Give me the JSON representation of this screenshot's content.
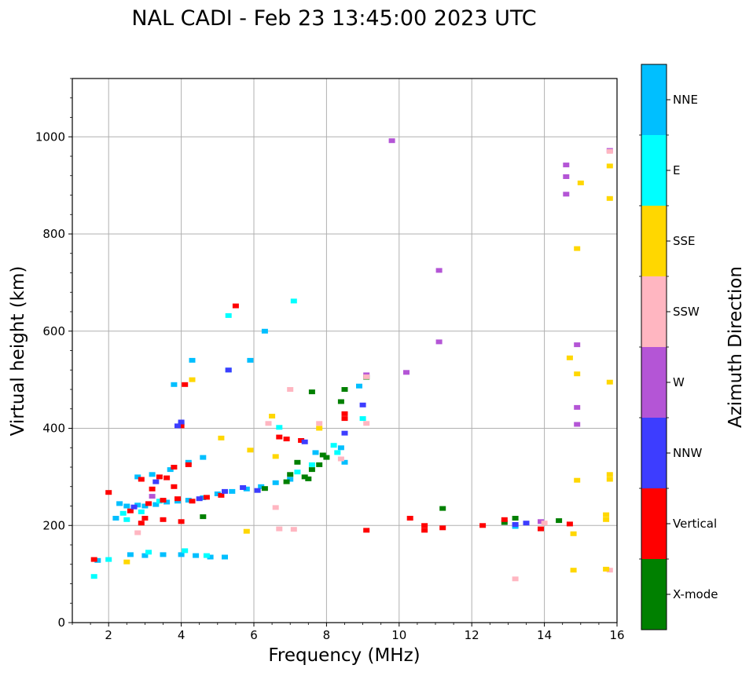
{
  "chart_data": {
    "type": "scatter",
    "title": "NAL CADI - Feb 23 13:45:00 2023 UTC",
    "xlabel": "Frequency (MHz)",
    "ylabel": "Virtual height (km)",
    "xlim": [
      1,
      16
    ],
    "ylim": [
      0,
      1120
    ],
    "xticks": [
      2,
      4,
      6,
      8,
      10,
      12,
      14,
      16
    ],
    "yticks": [
      0,
      200,
      400,
      600,
      800,
      1000
    ],
    "grid": true,
    "colorbar": {
      "label": "Azimuth Direction",
      "categories": [
        {
          "name": "X-mode",
          "color": "#008000"
        },
        {
          "name": "Vertical",
          "color": "#ff0000"
        },
        {
          "name": "NNW",
          "color": "#3d3dff"
        },
        {
          "name": "W",
          "color": "#b455d6"
        },
        {
          "name": "SSW",
          "color": "#ffb6c1"
        },
        {
          "name": "SSE",
          "color": "#ffd700"
        },
        {
          "name": "E",
          "color": "#00ffff"
        },
        {
          "name": "NNE",
          "color": "#00bfff"
        }
      ]
    },
    "series": [
      {
        "name": "NNE",
        "points": [
          [
            2.3,
            245
          ],
          [
            2.5,
            240
          ],
          [
            2.8,
            242
          ],
          [
            3.0,
            240
          ],
          [
            3.3,
            243
          ],
          [
            3.6,
            248
          ],
          [
            3.9,
            250
          ],
          [
            4.2,
            252
          ],
          [
            4.6,
            257
          ],
          [
            5.0,
            265
          ],
          [
            5.4,
            270
          ],
          [
            5.8,
            275
          ],
          [
            6.2,
            280
          ],
          [
            6.6,
            288
          ],
          [
            7.0,
            295
          ],
          [
            2.6,
            140
          ],
          [
            3.0,
            138
          ],
          [
            3.5,
            140
          ],
          [
            4.0,
            140
          ],
          [
            4.4,
            138
          ],
          [
            4.8,
            135
          ],
          [
            5.2,
            135
          ],
          [
            2.8,
            300
          ],
          [
            3.2,
            305
          ],
          [
            3.7,
            315
          ],
          [
            4.2,
            330
          ],
          [
            4.6,
            340
          ],
          [
            5.3,
            520
          ],
          [
            4.3,
            540
          ],
          [
            3.8,
            490
          ],
          [
            5.9,
            540
          ],
          [
            6.3,
            600
          ],
          [
            4.0,
            410
          ],
          [
            8.4,
            360
          ],
          [
            7.7,
            350
          ],
          [
            8.9,
            487
          ],
          [
            8.5,
            330
          ],
          [
            13.2,
            198
          ],
          [
            1.7,
            128
          ],
          [
            2.2,
            215
          ]
        ]
      },
      {
        "name": "E",
        "points": [
          [
            2.4,
            225
          ],
          [
            2.9,
            228
          ],
          [
            3.4,
            250
          ],
          [
            4.1,
            148
          ],
          [
            3.1,
            145
          ],
          [
            4.7,
            138
          ],
          [
            1.6,
            95
          ],
          [
            2.0,
            130
          ],
          [
            7.2,
            310
          ],
          [
            7.6,
            325
          ],
          [
            8.3,
            350
          ],
          [
            9.0,
            420
          ],
          [
            7.1,
            662
          ],
          [
            5.3,
            632
          ],
          [
            6.7,
            402
          ],
          [
            2.5,
            212
          ],
          [
            8.2,
            365
          ]
        ]
      },
      {
        "name": "X-mode",
        "points": [
          [
            7.2,
            330
          ],
          [
            7.4,
            300
          ],
          [
            7.6,
            315
          ],
          [
            7.8,
            325
          ],
          [
            8.0,
            340
          ],
          [
            7.0,
            305
          ],
          [
            6.9,
            290
          ],
          [
            7.5,
            296
          ],
          [
            7.9,
            345
          ],
          [
            8.5,
            480
          ],
          [
            8.4,
            455
          ],
          [
            9.1,
            505
          ],
          [
            11.2,
            235
          ],
          [
            13.2,
            215
          ],
          [
            14.4,
            210
          ],
          [
            12.9,
            206
          ],
          [
            7.6,
            475
          ],
          [
            4.6,
            218
          ],
          [
            6.3,
            276
          ]
        ]
      },
      {
        "name": "Vertical",
        "points": [
          [
            2.6,
            230
          ],
          [
            3.1,
            245
          ],
          [
            3.5,
            252
          ],
          [
            3.9,
            255
          ],
          [
            4.3,
            250
          ],
          [
            4.7,
            258
          ],
          [
            5.1,
            262
          ],
          [
            2.9,
            295
          ],
          [
            3.4,
            300
          ],
          [
            3.8,
            320
          ],
          [
            4.2,
            325
          ],
          [
            4.1,
            490
          ],
          [
            4.0,
            405
          ],
          [
            3.0,
            215
          ],
          [
            3.5,
            212
          ],
          [
            4.0,
            208
          ],
          [
            1.6,
            130
          ],
          [
            2.0,
            268
          ],
          [
            6.9,
            378
          ],
          [
            7.3,
            375
          ],
          [
            8.5,
            430
          ],
          [
            8.5,
            420
          ],
          [
            9.1,
            190
          ],
          [
            10.3,
            215
          ],
          [
            10.7,
            200
          ],
          [
            10.7,
            190
          ],
          [
            11.2,
            195
          ],
          [
            12.3,
            200
          ],
          [
            12.9,
            212
          ],
          [
            13.9,
            193
          ],
          [
            14.7,
            203
          ],
          [
            2.9,
            205
          ],
          [
            3.2,
            275
          ],
          [
            3.8,
            280
          ],
          [
            5.5,
            652
          ],
          [
            6.7,
            382
          ],
          [
            3.6,
            298
          ]
        ]
      },
      {
        "name": "NNW",
        "points": [
          [
            2.7,
            238
          ],
          [
            4.5,
            255
          ],
          [
            5.2,
            270
          ],
          [
            5.7,
            278
          ],
          [
            6.1,
            272
          ],
          [
            3.9,
            405
          ],
          [
            4.0,
            413
          ],
          [
            8.5,
            390
          ],
          [
            9.0,
            448
          ],
          [
            5.3,
            520
          ],
          [
            7.4,
            372
          ],
          [
            13.2,
            202
          ],
          [
            13.5,
            205
          ],
          [
            3.3,
            290
          ]
        ]
      },
      {
        "name": "W",
        "points": [
          [
            9.8,
            992
          ],
          [
            10.2,
            515
          ],
          [
            11.1,
            725
          ],
          [
            11.1,
            578
          ],
          [
            14.6,
            942
          ],
          [
            14.6,
            918
          ],
          [
            14.6,
            882
          ],
          [
            14.9,
            572
          ],
          [
            14.9,
            443
          ],
          [
            14.9,
            408
          ],
          [
            15.8,
            972
          ],
          [
            9.1,
            510
          ],
          [
            13.9,
            208
          ],
          [
            3.2,
            260
          ]
        ]
      },
      {
        "name": "SSW",
        "points": [
          [
            6.7,
            193
          ],
          [
            7.1,
            192
          ],
          [
            8.4,
            337
          ],
          [
            9.1,
            410
          ],
          [
            13.2,
            90
          ],
          [
            15.8,
            108
          ],
          [
            15.8,
            970
          ],
          [
            6.4,
            410
          ],
          [
            7.0,
            480
          ],
          [
            2.8,
            185
          ],
          [
            9.1,
            506
          ],
          [
            6.6,
            237
          ],
          [
            7.8,
            410
          ],
          [
            14.0,
            205
          ]
        ]
      },
      {
        "name": "SSE",
        "points": [
          [
            2.5,
            125
          ],
          [
            5.8,
            188
          ],
          [
            6.6,
            342
          ],
          [
            6.5,
            425
          ],
          [
            4.3,
            500
          ],
          [
            5.1,
            380
          ],
          [
            14.8,
            108
          ],
          [
            14.8,
            183
          ],
          [
            14.9,
            293
          ],
          [
            14.9,
            512
          ],
          [
            14.9,
            770
          ],
          [
            15.0,
            905
          ],
          [
            15.7,
            110
          ],
          [
            15.7,
            212
          ],
          [
            15.7,
            222
          ],
          [
            15.8,
            295
          ],
          [
            15.8,
            305
          ],
          [
            15.8,
            495
          ],
          [
            15.8,
            873
          ],
          [
            15.8,
            940
          ],
          [
            14.7,
            545
          ],
          [
            5.9,
            355
          ],
          [
            7.8,
            400
          ]
        ]
      }
    ]
  }
}
